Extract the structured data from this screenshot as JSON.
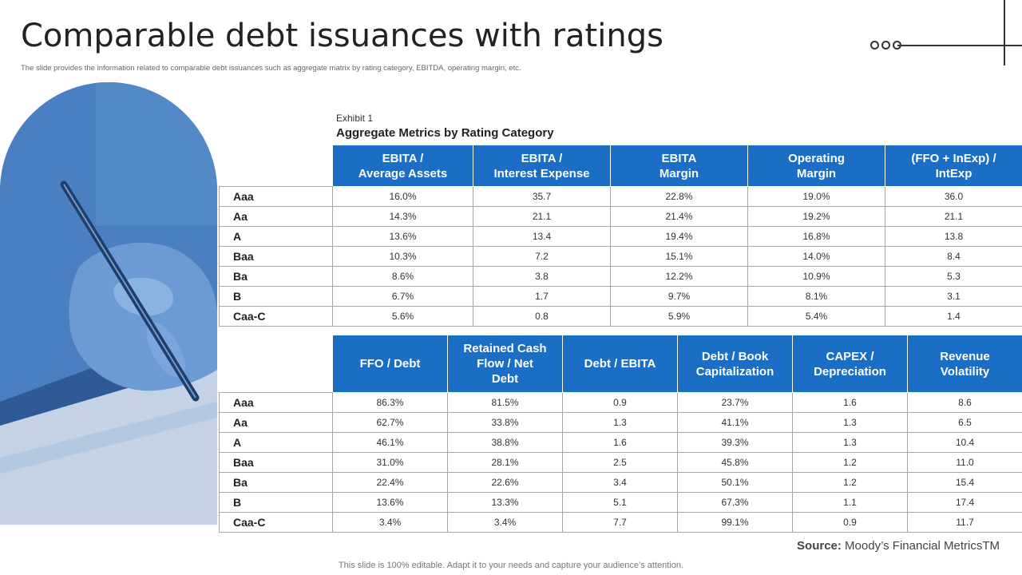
{
  "header": {
    "title": "Comparable debt issuances with ratings",
    "subtitle": "The slide provides the information related to comparable debt issuances such as aggregate matrix by rating category, EBITDA,  operating margin, etc."
  },
  "exhibit": {
    "label": "Exhibit 1",
    "title": "Aggregate Metrics by Rating Category"
  },
  "table1": {
    "headers": [
      [
        "EBITA /",
        "Average Assets"
      ],
      [
        "EBITA /",
        "Interest Expense"
      ],
      [
        "EBITA",
        "Margin"
      ],
      [
        "Operating",
        "Margin"
      ],
      [
        "(FFO + InExp) /",
        "IntExp"
      ]
    ],
    "rows": [
      {
        "label": "Aaa",
        "values": [
          "16.0%",
          "35.7",
          "22.8%",
          "19.0%",
          "36.0"
        ]
      },
      {
        "label": "Aa",
        "values": [
          "14.3%",
          "21.1",
          "21.4%",
          "19.2%",
          "21.1"
        ]
      },
      {
        "label": "A",
        "values": [
          "13.6%",
          "13.4",
          "19.4%",
          "16.8%",
          "13.8"
        ]
      },
      {
        "label": "Baa",
        "values": [
          "10.3%",
          "7.2",
          "15.1%",
          "14.0%",
          "8.4"
        ]
      },
      {
        "label": "Ba",
        "values": [
          "8.6%",
          "3.8",
          "12.2%",
          "10.9%",
          "5.3"
        ]
      },
      {
        "label": "B",
        "values": [
          "6.7%",
          "1.7",
          "9.7%",
          "8.1%",
          "3.1"
        ]
      },
      {
        "label": "Caa-C",
        "values": [
          "5.6%",
          "0.8",
          "5.9%",
          "5.4%",
          "1.4"
        ]
      }
    ]
  },
  "table2": {
    "headers": [
      [
        "FFO / Debt"
      ],
      [
        "Retained Cash",
        "Flow / Net",
        "Debt"
      ],
      [
        "Debt / EBITA"
      ],
      [
        "Debt / Book",
        "Capitalization"
      ],
      [
        "CAPEX /",
        "Depreciation"
      ],
      [
        "Revenue",
        "Volatility"
      ]
    ],
    "rows": [
      {
        "label": "Aaa",
        "values": [
          "86.3%",
          "81.5%",
          "0.9",
          "23.7%",
          "1.6",
          "8.6"
        ]
      },
      {
        "label": "Aa",
        "values": [
          "62.7%",
          "33.8%",
          "1.3",
          "41.1%",
          "1.3",
          "6.5"
        ]
      },
      {
        "label": "A",
        "values": [
          "46.1%",
          "38.8%",
          "1.6",
          "39.3%",
          "1.3",
          "10.4"
        ]
      },
      {
        "label": "Baa",
        "values": [
          "31.0%",
          "28.1%",
          "2.5",
          "45.8%",
          "1.2",
          "11.0"
        ]
      },
      {
        "label": "Ba",
        "values": [
          "22.4%",
          "22.6%",
          "3.4",
          "50.1%",
          "1.2",
          "15.4"
        ]
      },
      {
        "label": "B",
        "values": [
          "13.6%",
          "13.3%",
          "5.1",
          "67.3%",
          "1.1",
          "17.4"
        ]
      },
      {
        "label": "Caa-C",
        "values": [
          "3.4%",
          "3.4%",
          "7.7",
          "99.1%",
          "0.9",
          "11.7"
        ]
      }
    ]
  },
  "source": {
    "label": "Source:",
    "text": " Moody’s Financial MetricsTM"
  },
  "footer": {
    "text": "This slide is 100% editable. Adapt it to your needs and capture your audience’s attention."
  },
  "colors": {
    "header_blue": "#1a6ec5",
    "photo_blue": "#3c6fb0"
  }
}
